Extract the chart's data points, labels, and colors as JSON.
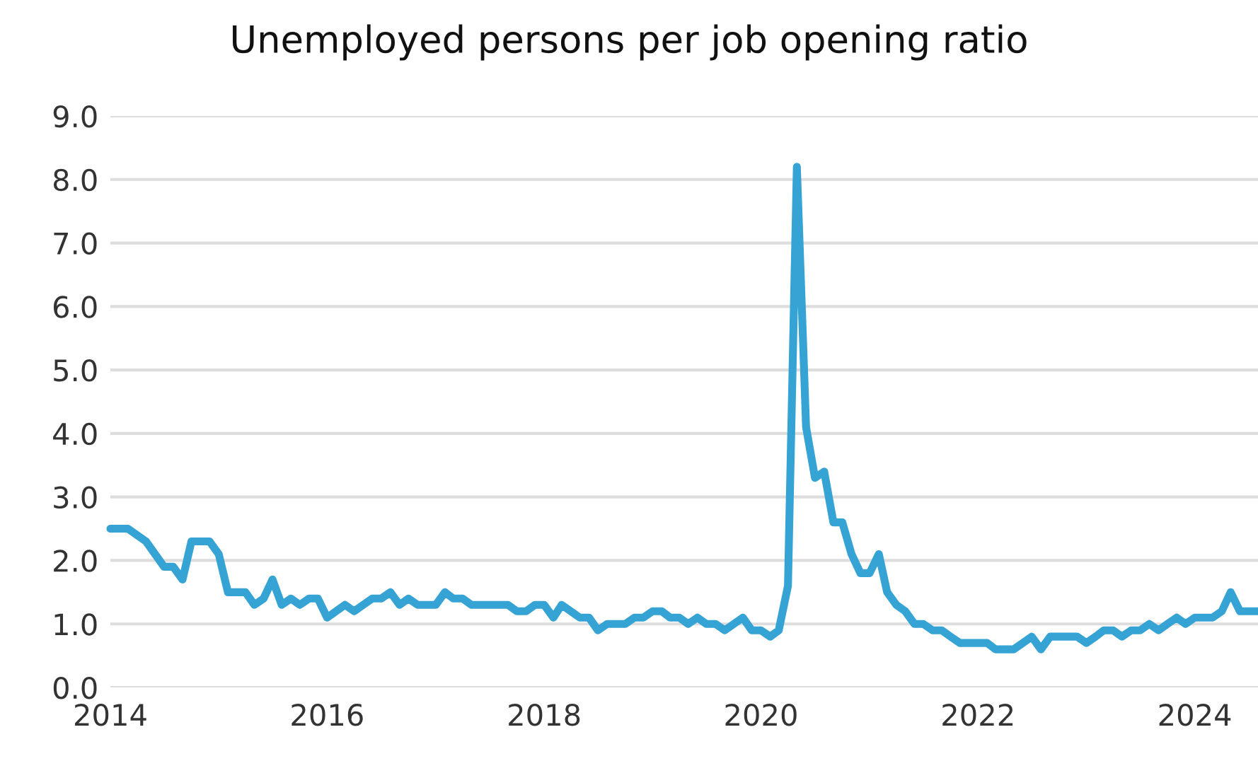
{
  "chart_data": {
    "type": "line",
    "title": "Unemployed persons per job opening ratio",
    "x": [
      "2014-01",
      "2014-03",
      "2014-05",
      "2014-07",
      "2014-08",
      "2014-09",
      "2014-10",
      "2014-12",
      "2015-01",
      "2015-02",
      "2015-04",
      "2015-05",
      "2015-06",
      "2015-07",
      "2015-08",
      "2015-09",
      "2015-10",
      "2015-11",
      "2015-12",
      "2016-01",
      "2016-03",
      "2016-04",
      "2016-06",
      "2016-07",
      "2016-08",
      "2016-09",
      "2016-10",
      "2016-11",
      "2017-01",
      "2017-02",
      "2017-03",
      "2017-04",
      "2017-05",
      "2017-09",
      "2017-10",
      "2017-11",
      "2017-12",
      "2018-01",
      "2018-02",
      "2018-03",
      "2018-05",
      "2018-06",
      "2018-07",
      "2018-08",
      "2018-10",
      "2018-11",
      "2018-12",
      "2019-01",
      "2019-02",
      "2019-03",
      "2019-04",
      "2019-05",
      "2019-06",
      "2019-07",
      "2019-08",
      "2019-09",
      "2019-11",
      "2019-12",
      "2020-01",
      "2020-02",
      "2020-03",
      "2020-04",
      "2020-05",
      "2020-06",
      "2020-07",
      "2020-08",
      "2020-09",
      "2020-10",
      "2020-11",
      "2020-12",
      "2021-01",
      "2021-02",
      "2021-03",
      "2021-04",
      "2021-05",
      "2021-06",
      "2021-07",
      "2021-08",
      "2021-09",
      "2021-10",
      "2021-11",
      "2022-02",
      "2022-03",
      "2022-05",
      "2022-06",
      "2022-07",
      "2022-08",
      "2022-09",
      "2022-12",
      "2023-01",
      "2023-02",
      "2023-03",
      "2023-04",
      "2023-05",
      "2023-06",
      "2023-07",
      "2023-08",
      "2023-09",
      "2023-10",
      "2023-11",
      "2023-12",
      "2024-01",
      "2024-03",
      "2024-04",
      "2024-05",
      "2024-06",
      "2024-08"
    ],
    "series": [
      {
        "color": "#36a3d5",
        "values": [
          2.5,
          2.5,
          2.3,
          1.9,
          1.9,
          1.7,
          2.3,
          2.3,
          2.1,
          1.5,
          1.5,
          1.3,
          1.4,
          1.7,
          1.3,
          1.4,
          1.3,
          1.4,
          1.4,
          1.1,
          1.3,
          1.2,
          1.4,
          1.4,
          1.5,
          1.3,
          1.4,
          1.3,
          1.3,
          1.5,
          1.4,
          1.4,
          1.3,
          1.3,
          1.2,
          1.2,
          1.3,
          1.3,
          1.1,
          1.3,
          1.1,
          1.1,
          0.9,
          1.0,
          1.0,
          1.1,
          1.1,
          1.2,
          1.2,
          1.1,
          1.1,
          1.0,
          1.1,
          1.0,
          1.0,
          0.9,
          1.1,
          0.9,
          0.9,
          0.8,
          0.9,
          1.6,
          8.2,
          4.1,
          3.3,
          3.4,
          2.6,
          2.6,
          2.1,
          1.8,
          1.8,
          2.1,
          1.5,
          1.3,
          1.2,
          1.0,
          1.0,
          0.9,
          0.9,
          0.8,
          0.7,
          0.7,
          0.6,
          0.6,
          0.7,
          0.8,
          0.6,
          0.8,
          0.8,
          0.7,
          0.8,
          0.9,
          0.9,
          0.8,
          0.9,
          0.9,
          1.0,
          0.9,
          1.0,
          1.1,
          1.0,
          1.1,
          1.1,
          1.2,
          1.5,
          1.2,
          1.2
        ]
      }
    ],
    "xlim": [
      "2014-01",
      "2024-08"
    ],
    "xticks": [
      "2014",
      "2016",
      "2018",
      "2020",
      "2022",
      "2024"
    ],
    "ylim": [
      0,
      9
    ],
    "yticks": [
      {
        "value": 0,
        "label": "0.0"
      },
      {
        "value": 1,
        "label": "1.0"
      },
      {
        "value": 2,
        "label": "2.0"
      },
      {
        "value": 3,
        "label": "3.0"
      },
      {
        "value": 4,
        "label": "4.0"
      },
      {
        "value": 5,
        "label": "5.0"
      },
      {
        "value": 6,
        "label": "6.0"
      },
      {
        "value": 7,
        "label": "7.0"
      },
      {
        "value": 8,
        "label": "8.0"
      },
      {
        "value": 9,
        "label": "9.0"
      }
    ],
    "grid": "y",
    "line_style": "solid",
    "marker": "none"
  }
}
